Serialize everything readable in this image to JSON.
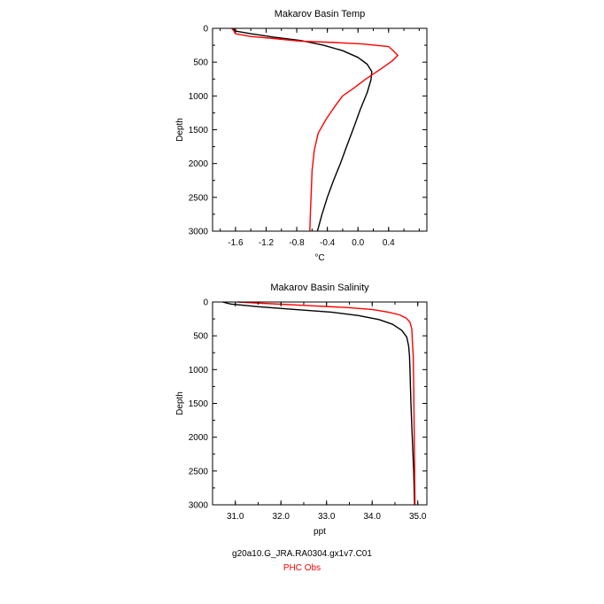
{
  "chart_data": [
    {
      "type": "line",
      "title": "Makarov Basin Temp",
      "xlabel": "°C",
      "ylabel": "Depth",
      "xlim": [
        -1.9,
        0.9
      ],
      "ylim": [
        3000,
        0
      ],
      "xticks": [
        "-1.6",
        "-1.2",
        "-0.8",
        "-0.4",
        "0.0",
        "0.4"
      ],
      "xtick_values": [
        -1.6,
        -1.2,
        -0.8,
        -0.4,
        0.0,
        0.4
      ],
      "yticks": [
        "0",
        "500",
        "1000",
        "1500",
        "2000",
        "2500",
        "3000"
      ],
      "ytick_values": [
        0,
        500,
        1000,
        1500,
        2000,
        2500,
        3000
      ],
      "series": [
        {
          "name": "g20a10.G_JRA.RA0304.gx1v7.C01",
          "color": "#000000",
          "points": [
            [
              -1.63,
              0
            ],
            [
              -1.6,
              40
            ],
            [
              -1.4,
              80
            ],
            [
              -1.1,
              130
            ],
            [
              -0.75,
              180
            ],
            [
              -0.45,
              250
            ],
            [
              -0.2,
              330
            ],
            [
              0.0,
              430
            ],
            [
              0.12,
              530
            ],
            [
              0.18,
              640
            ],
            [
              0.17,
              760
            ],
            [
              0.12,
              950
            ],
            [
              0.03,
              1200
            ],
            [
              -0.05,
              1450
            ],
            [
              -0.15,
              1750
            ],
            [
              -0.23,
              2000
            ],
            [
              -0.32,
              2250
            ],
            [
              -0.4,
              2500
            ],
            [
              -0.47,
              2750
            ],
            [
              -0.53,
              3000
            ]
          ]
        },
        {
          "name": "PHC Obs",
          "color": "#ff0000",
          "points": [
            [
              -1.65,
              0
            ],
            [
              -1.62,
              40
            ],
            [
              -1.6,
              80
            ],
            [
              -1.4,
              120
            ],
            [
              -1.1,
              150
            ],
            [
              -0.75,
              190
            ],
            [
              -0.3,
              210
            ],
            [
              0.05,
              230
            ],
            [
              0.4,
              270
            ],
            [
              0.45,
              320
            ],
            [
              0.52,
              400
            ],
            [
              0.45,
              480
            ],
            [
              0.3,
              600
            ],
            [
              0.1,
              750
            ],
            [
              -0.05,
              880
            ],
            [
              -0.2,
              1000
            ],
            [
              -0.3,
              1150
            ],
            [
              -0.42,
              1350
            ],
            [
              -0.52,
              1550
            ],
            [
              -0.57,
              1800
            ],
            [
              -0.6,
              2100
            ],
            [
              -0.61,
              2400
            ],
            [
              -0.62,
              2700
            ],
            [
              -0.63,
              3000
            ]
          ]
        }
      ]
    },
    {
      "type": "line",
      "title": "Makarov Basin Salinity",
      "xlabel": "ppt",
      "ylabel": "Depth",
      "xlim": [
        30.5,
        35.2
      ],
      "ylim": [
        3000,
        0
      ],
      "xticks": [
        "31.0",
        "32.0",
        "33.0",
        "34.0",
        "35.0"
      ],
      "xtick_values": [
        31,
        32,
        33,
        34,
        35
      ],
      "yticks": [
        "0",
        "500",
        "1000",
        "1500",
        "2000",
        "2500",
        "3000"
      ],
      "ytick_values": [
        0,
        500,
        1000,
        1500,
        2000,
        2500,
        3000
      ],
      "series": [
        {
          "name": "g20a10.G_JRA.RA0304.gx1v7.C01",
          "color": "#000000",
          "points": [
            [
              30.72,
              0
            ],
            [
              30.9,
              30
            ],
            [
              31.5,
              70
            ],
            [
              32.3,
              110
            ],
            [
              33.1,
              150
            ],
            [
              33.7,
              200
            ],
            [
              34.15,
              260
            ],
            [
              34.45,
              330
            ],
            [
              34.65,
              420
            ],
            [
              34.76,
              520
            ],
            [
              34.8,
              650
            ],
            [
              34.82,
              800
            ],
            [
              34.83,
              1000
            ],
            [
              34.85,
              1500
            ],
            [
              34.88,
              2000
            ],
            [
              34.91,
              2500
            ],
            [
              34.93,
              3000
            ]
          ]
        },
        {
          "name": "PHC Obs",
          "color": "#ff0000",
          "points": [
            [
              31.05,
              0
            ],
            [
              31.6,
              20
            ],
            [
              32.5,
              50
            ],
            [
              33.4,
              80
            ],
            [
              34.0,
              110
            ],
            [
              34.35,
              150
            ],
            [
              34.6,
              190
            ],
            [
              34.75,
              240
            ],
            [
              34.83,
              300
            ],
            [
              34.87,
              400
            ],
            [
              34.88,
              550
            ],
            [
              34.9,
              800
            ],
            [
              34.91,
              1200
            ],
            [
              34.92,
              1800
            ],
            [
              34.93,
              2400
            ],
            [
              34.94,
              3000
            ]
          ]
        }
      ]
    }
  ],
  "legend": {
    "model": "g20a10.G_JRA.RA0304.gx1v7.C01",
    "obs": "PHC Obs",
    "model_color": "#000000",
    "obs_color": "#ff0000"
  }
}
